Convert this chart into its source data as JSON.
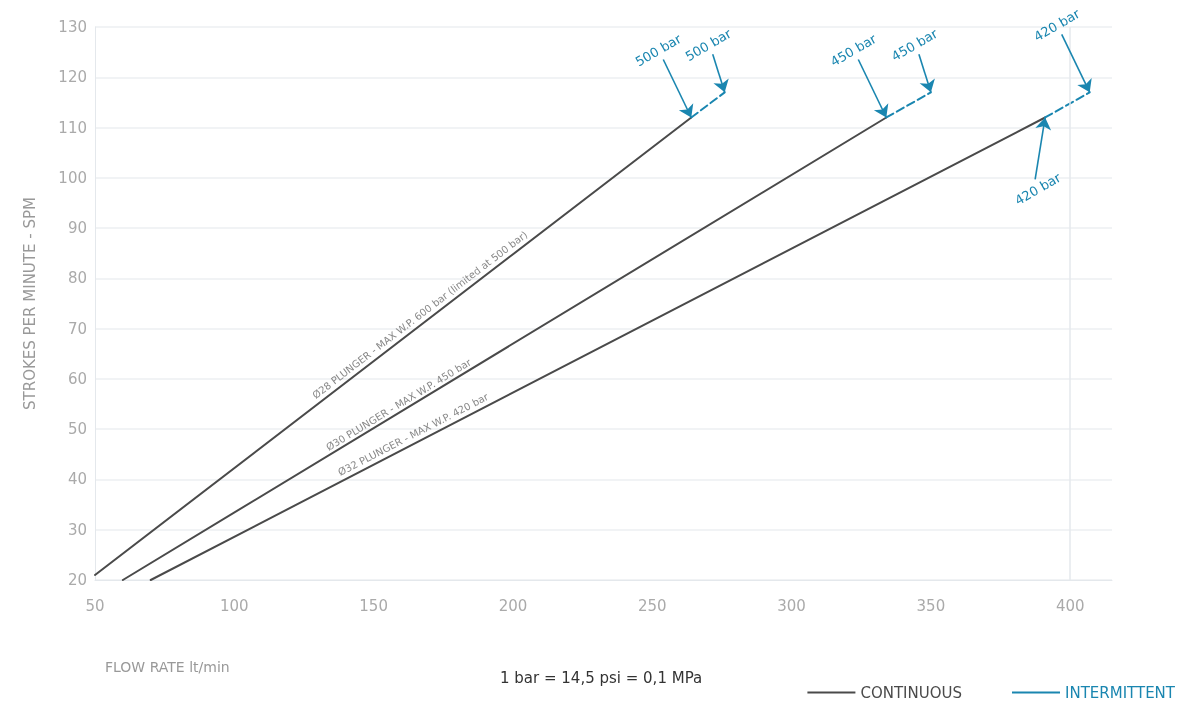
{
  "chart_data": {
    "type": "line",
    "xlabel": "FLOW RATE lt/min",
    "ylabel": "STROKES PER MINUTE - SPM",
    "xlim": [
      50,
      415
    ],
    "xticks": [
      50,
      100,
      150,
      200,
      250,
      300,
      350,
      400
    ],
    "ylim": [
      20,
      130
    ],
    "yticks": [
      20,
      30,
      40,
      50,
      60,
      70,
      80,
      90,
      100,
      110,
      120,
      130
    ],
    "grid": "y",
    "legend": "bottom right",
    "marker": "none",
    "series": [
      {
        "name": "CONTINUOUS",
        "color": "#4a4a4a",
        "line_style": "solid",
        "x": [
          50,
          264
        ],
        "values": [
          21,
          112
        ]
      },
      {
        "color": "#4a4a4a",
        "line_style": "solid",
        "x": [
          60,
          334
        ],
        "values": [
          20,
          112
        ]
      },
      {
        "color": "#4a4a4a",
        "line_style": "solid",
        "x": [
          70,
          391
        ],
        "values": [
          20,
          112
        ]
      },
      {
        "name": "INTERMITTENT",
        "color": "#1a86b0",
        "line_style": "dashed",
        "x": [
          264,
          276
        ],
        "values": [
          112,
          117
        ]
      },
      {
        "color": "#1a86b0",
        "line_style": "dashed",
        "x": [
          334,
          350
        ],
        "values": [
          112,
          117
        ]
      },
      {
        "color": "#1a86b0",
        "line_style": "dashed",
        "x": [
          391,
          407
        ],
        "values": [
          112,
          117
        ]
      }
    ],
    "ref_lines": [
      {
        "axis": "x",
        "value": 400,
        "color": "#e4e8ec"
      }
    ],
    "annotations": [
      {
        "text": "500 bar",
        "x": 264,
        "y": 112
      },
      {
        "text": "500 bar",
        "x": 276,
        "y": 117
      },
      {
        "text": "450 bar",
        "x": 334,
        "y": 112
      },
      {
        "text": "450 bar",
        "x": 350,
        "y": 117
      },
      {
        "text": "420 bar",
        "x": 407,
        "y": 117
      },
      {
        "text": "420 bar",
        "x": 391,
        "y": 112
      },
      {
        "text": "Ø28 PLUNGER - MAX W.P. 600 bar (limited at 500 bar)",
        "x": 169,
        "y": 71
      },
      {
        "text": "Ø30 PLUNGER - MAX W.P. 450 bar",
        "x": 161,
        "y": 53
      },
      {
        "text": "Ø32 PLUNGER - MAX W.P. 420 bar",
        "x": 166,
        "y": 47
      },
      "1 bar = 14,5 psi = 0,1 MPa"
    ]
  }
}
